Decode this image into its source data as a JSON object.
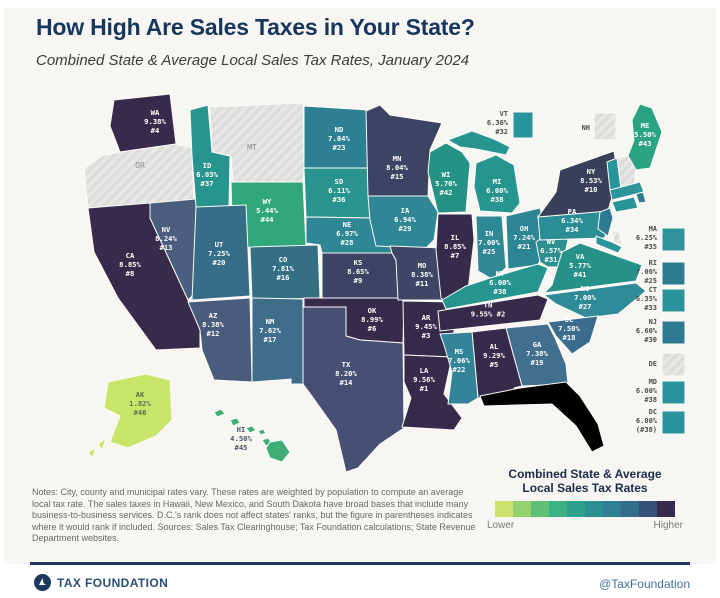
{
  "header": {
    "title": "How High Are Sales Taxes in Your State?",
    "subtitle": "Combined State & Average Local Sales Tax Rates, January 2024"
  },
  "legend": {
    "title_line1": "Combined State & Average",
    "title_line2": "Local Sales Tax Rates",
    "lower": "Lower",
    "higher": "Higher",
    "ramp": [
      "#cbe36b",
      "#93d26e",
      "#5fc175",
      "#3db183",
      "#2ea18c",
      "#2b9093",
      "#2e8092",
      "#326d8c",
      "#36547a",
      "#372b4c"
    ]
  },
  "notes": "Notes: City, county and municipal rates vary. These rates are weighted by population to compute an average local tax rate. The sales taxes in Hawaii, New Mexico, and South Dakota have broad bases that include many business-to-business services. D.C.'s rank does not affect states' ranks, but the figure in parentheses indicates where it would rank if included. Sources: Sales Tax Clearinghouse; Tax Foundation calculations; State Revenue Department websites.",
  "footer": {
    "brand": "TAX FOUNDATION",
    "handle": "@TaxFoundation"
  },
  "colors": {
    "title_navy": "#16365c",
    "rule_navy": "#1e3a5f",
    "no_tax_fill": "#e7e7e5"
  },
  "states": {
    "WA": {
      "abbr": "WA",
      "rate": "9.38%",
      "rank": "#4",
      "color": "#372b4c"
    },
    "OR": {
      "abbr": "OR",
      "rate": null,
      "rank": null,
      "color": "hatch",
      "text_color": "#8e8e8c"
    },
    "CA": {
      "abbr": "CA",
      "rate": "8.85%",
      "rank": "#8",
      "color": "#372b4c"
    },
    "NV": {
      "abbr": "NV",
      "rate": "8.24%",
      "rank": "#13",
      "color": "#4b5e7d"
    },
    "ID": {
      "abbr": "ID",
      "rate": "6.03%",
      "rank": "#37",
      "color": "#27948d"
    },
    "MT": {
      "abbr": "MT",
      "rate": null,
      "rank": null,
      "color": "hatch",
      "text_color": "#8e8e8c"
    },
    "WY": {
      "abbr": "WY",
      "rate": "5.44%",
      "rank": "#44",
      "color": "#31a87c"
    },
    "UT": {
      "abbr": "UT",
      "rate": "7.25%",
      "rank": "#20",
      "color": "#356e86"
    },
    "CO": {
      "abbr": "CO",
      "rate": "7.81%",
      "rank": "#16",
      "color": "#346f83"
    },
    "AZ": {
      "abbr": "AZ",
      "rate": "8.38%",
      "rank": "#12",
      "color": "#4a5c7b"
    },
    "NM": {
      "abbr": "NM",
      "rate": "7.62%",
      "rank": "#17",
      "color": "#3e6e8a"
    },
    "ND": {
      "abbr": "ND",
      "rate": "7.04%",
      "rank": "#23",
      "color": "#2e7f91"
    },
    "SD": {
      "abbr": "SD",
      "rate": "6.11%",
      "rank": "#36",
      "color": "#2a9590"
    },
    "NE": {
      "abbr": "NE",
      "rate": "6.97%",
      "rank": "#28",
      "color": "#2f8695"
    },
    "KS": {
      "abbr": "KS",
      "rate": "8.65%",
      "rank": "#9",
      "color": "#3d4362"
    },
    "OK": {
      "abbr": "OK",
      "rate": "8.99%",
      "rank": "#6",
      "color": "#372b4c"
    },
    "TX": {
      "abbr": "TX",
      "rate": "8.20%",
      "rank": "#14",
      "color": "#475074"
    },
    "MN": {
      "abbr": "MN",
      "rate": "8.04%",
      "rank": "#15",
      "color": "#3d4362"
    },
    "IA": {
      "abbr": "IA",
      "rate": "6.94%",
      "rank": "#29",
      "color": "#2f8695"
    },
    "MO": {
      "abbr": "MO",
      "rate": "8.38%",
      "rank": "#11",
      "color": "#3f4565"
    },
    "AR": {
      "abbr": "AR",
      "rate": "9.45%",
      "rank": "#3",
      "color": "#372b4c"
    },
    "LA": {
      "abbr": "LA",
      "rate": "9.56%",
      "rank": "#1",
      "color": "#372b4c"
    },
    "WI": {
      "abbr": "WI",
      "rate": "5.70%",
      "rank": "#42",
      "color": "#259286"
    },
    "IL": {
      "abbr": "IL",
      "rate": "8.85%",
      "rank": "#7",
      "color": "#372b4c"
    },
    "MI": {
      "abbr": "MI",
      "rate": "6.00%",
      "rank": "#38",
      "color": "#26958f"
    },
    "IN": {
      "abbr": "IN",
      "rate": "7.00%",
      "rank": "#25",
      "color": "#2e8995"
    },
    "OH": {
      "abbr": "OH",
      "rate": "7.24%",
      "rank": "#21",
      "color": "#2d8694"
    },
    "KY": {
      "abbr": "KY",
      "rate": "6.00%",
      "rank": "#38",
      "color": "#26958f"
    },
    "TN": {
      "abbr": "TN",
      "rate": "9.55%",
      "rank": "#2",
      "color": "#372b4c",
      "two_line": true
    },
    "MS": {
      "abbr": "MS",
      "rate": "7.06%",
      "rank": "#22",
      "color": "#338399"
    },
    "AL": {
      "abbr": "AL",
      "rate": "9.29%",
      "rank": "#5",
      "color": "#372b4c"
    },
    "GA": {
      "abbr": "GA",
      "rate": "7.38%",
      "rank": "#19",
      "color": "#41708e"
    },
    "SC": {
      "abbr": "SC",
      "rate": "7.50%",
      "rank": "#18",
      "color": "#3c6c8d"
    },
    "NC": {
      "abbr": "NC",
      "rate": "7.00%",
      "rank": "#27",
      "color": "#2e8b97"
    },
    "VA": {
      "abbr": "VA",
      "rate": "5.77%",
      "rank": "#41",
      "color": "#269187"
    },
    "WV": {
      "abbr": "WV",
      "rate": "6.57%",
      "rank": "#31",
      "color": "#2d8f8f"
    },
    "PA": {
      "abbr": "PA",
      "rate": "6.34%",
      "rank": "#34",
      "color": "#2b8e96"
    },
    "NY": {
      "abbr": "NY",
      "rate": "8.53%",
      "rank": "#10",
      "color": "#3a3f5a"
    },
    "ME": {
      "abbr": "ME",
      "rate": "5.50%",
      "rank": "#43",
      "color": "#2aa381"
    },
    "VT": {
      "abbr": "VT",
      "rate": "6.36%",
      "rank": "#32",
      "color": "#28949b",
      "text_color": "#4d4d4d"
    },
    "NH": {
      "abbr": "NH",
      "rate": null,
      "rank": null,
      "color": "hatch",
      "text_color": "#4d4d4d"
    },
    "MA": {
      "abbr": "MA",
      "rate": "6.25%",
      "rank": "#35",
      "color": "#2e939b",
      "text_color": "#4d4d4d"
    },
    "RI": {
      "abbr": "RI",
      "rate": "7.00%",
      "rank": "#25",
      "color": "#2d7d90",
      "text_color": "#4d4d4d"
    },
    "CT": {
      "abbr": "CT",
      "rate": "6.35%",
      "rank": "#33",
      "color": "#2a949b",
      "text_color": "#4d4d4d"
    },
    "NJ": {
      "abbr": "NJ",
      "rate": "6.60%",
      "rank": "#30",
      "color": "#2d7b90",
      "text_color": "#4d4d4d"
    },
    "DE": {
      "abbr": "DE",
      "rate": null,
      "rank": null,
      "color": "hatch",
      "text_color": "#4d4d4d"
    },
    "MD": {
      "abbr": "MD",
      "rate": "6.00%",
      "rank": "#38",
      "color": "#27959b",
      "text_color": "#4d4d4d"
    },
    "DC": {
      "abbr": "DC",
      "rate": "6.00%",
      "rank": "(#38)",
      "color": "#27959b",
      "text_color": "#4d4d4d"
    },
    "AK": {
      "abbr": "AK",
      "rate": "1.82%",
      "rank": "#46",
      "color": "#c8e56a",
      "text_color": "#5f7050"
    },
    "HI": {
      "abbr": "HI",
      "rate": "4.50%",
      "rank": "#45",
      "color": "#3fae76",
      "text_color": "#4a5568"
    }
  }
}
